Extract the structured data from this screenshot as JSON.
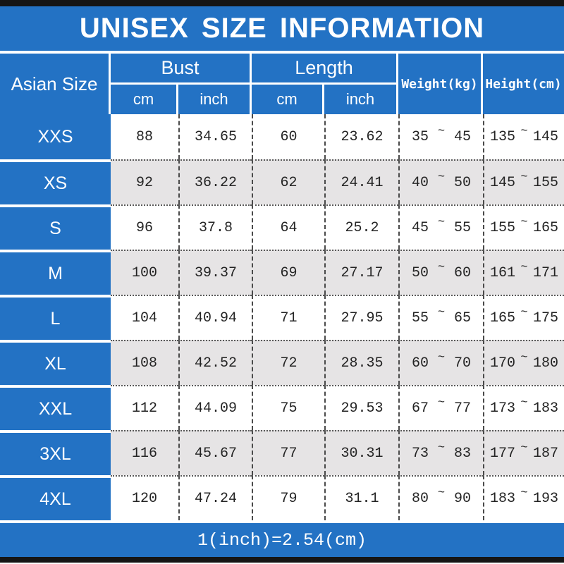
{
  "title": "UNISEX SIZE INFORMATION",
  "footer_note": "1(inch)=2.54(cm)",
  "colors": {
    "blue": "#2372c4",
    "alt_row": "#e6e4e5",
    "bar": "#151515",
    "ink": "#242424"
  },
  "table": {
    "tilde": "~",
    "header": {
      "asian_size": "Asian Size",
      "bust": "Bust",
      "length": "Length",
      "weight": "Weight(kg)",
      "height": "Height(cm)",
      "bust_cm": "cm",
      "bust_inch": "inch",
      "length_cm": "cm",
      "length_inch": "inch"
    },
    "rows": [
      {
        "size": "XXS",
        "bust_cm": "88",
        "bust_inch": "34.65",
        "length_cm": "60",
        "length_inch": "23.62",
        "weight_min": "35",
        "weight_max": "45",
        "height_min": "135",
        "height_max": "145"
      },
      {
        "size": "XS",
        "bust_cm": "92",
        "bust_inch": "36.22",
        "length_cm": "62",
        "length_inch": "24.41",
        "weight_min": "40",
        "weight_max": "50",
        "height_min": "145",
        "height_max": "155"
      },
      {
        "size": "S",
        "bust_cm": "96",
        "bust_inch": "37.8",
        "length_cm": "64",
        "length_inch": "25.2",
        "weight_min": "45",
        "weight_max": "55",
        "height_min": "155",
        "height_max": "165"
      },
      {
        "size": "M",
        "bust_cm": "100",
        "bust_inch": "39.37",
        "length_cm": "69",
        "length_inch": "27.17",
        "weight_min": "50",
        "weight_max": "60",
        "height_min": "161",
        "height_max": "171"
      },
      {
        "size": "L",
        "bust_cm": "104",
        "bust_inch": "40.94",
        "length_cm": "71",
        "length_inch": "27.95",
        "weight_min": "55",
        "weight_max": "65",
        "height_min": "165",
        "height_max": "175"
      },
      {
        "size": "XL",
        "bust_cm": "108",
        "bust_inch": "42.52",
        "length_cm": "72",
        "length_inch": "28.35",
        "weight_min": "60",
        "weight_max": "70",
        "height_min": "170",
        "height_max": "180"
      },
      {
        "size": "XXL",
        "bust_cm": "112",
        "bust_inch": "44.09",
        "length_cm": "75",
        "length_inch": "29.53",
        "weight_min": "67",
        "weight_max": "77",
        "height_min": "173",
        "height_max": "183"
      },
      {
        "size": "3XL",
        "bust_cm": "116",
        "bust_inch": "45.67",
        "length_cm": "77",
        "length_inch": "30.31",
        "weight_min": "73",
        "weight_max": "83",
        "height_min": "177",
        "height_max": "187"
      },
      {
        "size": "4XL",
        "bust_cm": "120",
        "bust_inch": "47.24",
        "length_cm": "79",
        "length_inch": "31.1",
        "weight_min": "80",
        "weight_max": "90",
        "height_min": "183",
        "height_max": "193"
      }
    ]
  },
  "chart_data": {
    "type": "table",
    "title": "UNISEX SIZE INFORMATION",
    "columns": [
      "Asian Size",
      "Bust (cm)",
      "Bust (inch)",
      "Length (cm)",
      "Length (inch)",
      "Weight (kg)",
      "Height (cm)"
    ],
    "rows": [
      [
        "XXS",
        88,
        34.65,
        60,
        23.62,
        "35~45",
        "135~145"
      ],
      [
        "XS",
        92,
        36.22,
        62,
        24.41,
        "40~50",
        "145~155"
      ],
      [
        "S",
        96,
        37.8,
        64,
        25.2,
        "45~55",
        "155~165"
      ],
      [
        "M",
        100,
        39.37,
        69,
        27.17,
        "50~60",
        "161~171"
      ],
      [
        "L",
        104,
        40.94,
        71,
        27.95,
        "55~65",
        "165~175"
      ],
      [
        "XL",
        108,
        42.52,
        72,
        28.35,
        "60~70",
        "170~180"
      ],
      [
        "XXL",
        112,
        44.09,
        75,
        29.53,
        "67~77",
        "173~183"
      ],
      [
        "3XL",
        116,
        45.67,
        77,
        30.31,
        "73~83",
        "177~187"
      ],
      [
        "4XL",
        120,
        47.24,
        79,
        31.1,
        "80~90",
        "183~193"
      ]
    ],
    "footnote": "1(inch)=2.54(cm)"
  }
}
